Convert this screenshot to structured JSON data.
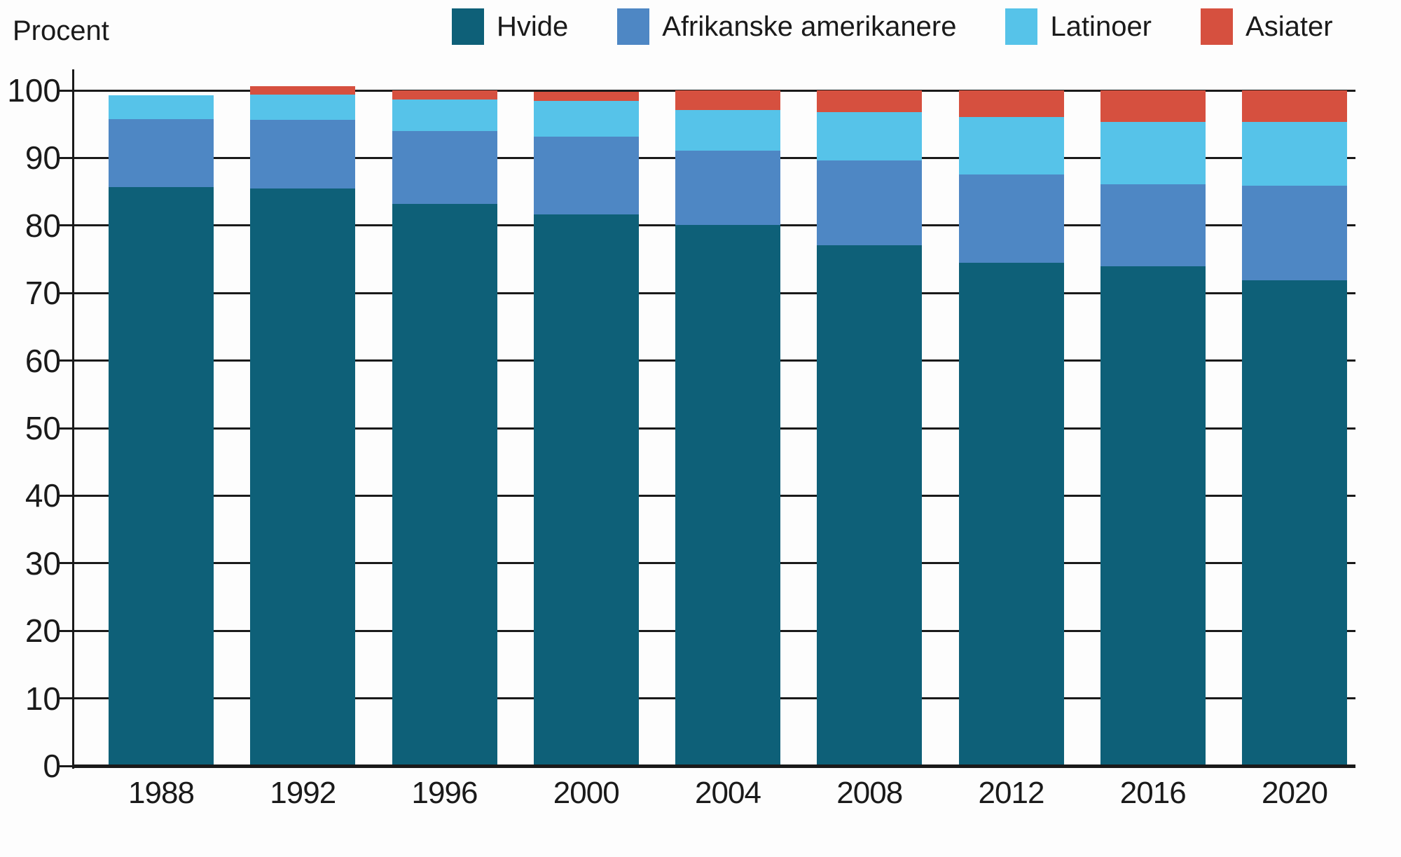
{
  "chart_data": {
    "type": "bar",
    "stacked": true,
    "ylabel": "Procent",
    "xlabel": "",
    "title": "",
    "categories": [
      "1988",
      "1992",
      "1996",
      "2000",
      "2004",
      "2008",
      "2012",
      "2016",
      "2020"
    ],
    "series": [
      {
        "name": "Hvide",
        "color": "#0E6078",
        "values": [
          85.7,
          85.5,
          83.2,
          81.6,
          80.1,
          77.1,
          74.5,
          74.0,
          71.9
        ]
      },
      {
        "name": "Afrikanske amerikanere",
        "color": "#4E87C4",
        "values": [
          10.0,
          10.1,
          10.8,
          11.6,
          11.0,
          12.5,
          13.1,
          12.1,
          14.0
        ]
      },
      {
        "name": "Latinoer",
        "color": "#56C3E9",
        "values": [
          3.6,
          3.8,
          4.7,
          5.2,
          6.0,
          7.2,
          8.5,
          9.2,
          9.4
        ]
      },
      {
        "name": "Asiater",
        "color": "#D6503F",
        "values": [
          0.0,
          1.2,
          1.3,
          1.4,
          2.9,
          3.2,
          3.9,
          4.7,
          4.7
        ]
      }
    ],
    "ylim": [
      0,
      100
    ],
    "yticks": [
      0,
      10,
      20,
      30,
      40,
      50,
      60,
      70,
      80,
      90,
      100
    ],
    "grid": true,
    "legend_position": "top"
  },
  "colors": {
    "axis": "#1a1a1a",
    "background": "#fdfdfd"
  }
}
